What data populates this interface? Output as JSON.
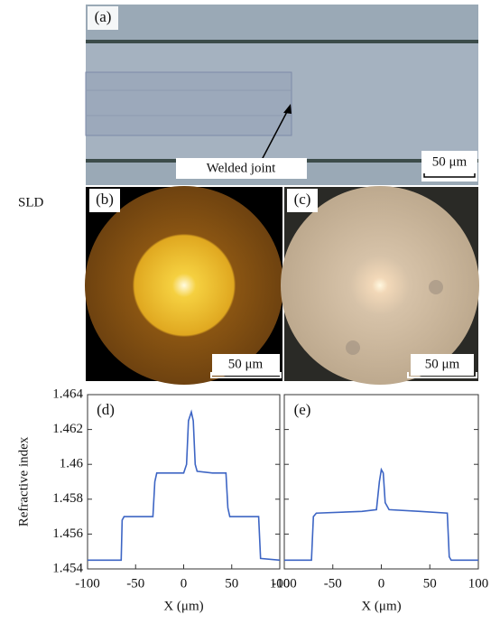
{
  "images": {
    "a": {
      "label": "(a)",
      "annotation": "Welded joint",
      "scale": "50 μm"
    },
    "b": {
      "label": "(b)",
      "scale": "50 μm"
    },
    "c": {
      "label": "(c)",
      "scale": "50 μm"
    },
    "side_label": "SLD"
  },
  "chart_data": [
    {
      "type": "line",
      "label": "(d)",
      "ylabel": "Refractive index",
      "xlabel": "X (μm)",
      "xlim": [
        -100,
        100
      ],
      "xticks": [
        -100,
        -50,
        0,
        50,
        100
      ],
      "ylim": [
        1.454,
        1.464
      ],
      "yticks": [
        1.454,
        1.456,
        1.458,
        1.46,
        1.462,
        1.464
      ],
      "show_ytick_labels": true,
      "series": [
        {
          "name": "(d)",
          "color": "#3d65c4",
          "x": [
            -100,
            -65,
            -64,
            -62,
            -50,
            -32,
            -30,
            -28,
            -10,
            0,
            3,
            5,
            8,
            10,
            12,
            14,
            30,
            44,
            46,
            48,
            70,
            78,
            80,
            100
          ],
          "values": [
            1.4545,
            1.4545,
            1.4568,
            1.457,
            1.457,
            1.457,
            1.459,
            1.4595,
            1.4595,
            1.4595,
            1.46,
            1.4625,
            1.463,
            1.4625,
            1.46,
            1.4596,
            1.4595,
            1.4595,
            1.4575,
            1.457,
            1.457,
            1.457,
            1.4546,
            1.4545
          ]
        }
      ]
    },
    {
      "type": "line",
      "label": "(e)",
      "xlabel": "X (μm)",
      "xlim": [
        -100,
        100
      ],
      "xticks": [
        -100,
        -50,
        0,
        50,
        100
      ],
      "ylim": [
        1.454,
        1.464
      ],
      "yticks": [
        1.454,
        1.456,
        1.458,
        1.46,
        1.462,
        1.464
      ],
      "show_ytick_labels": false,
      "series": [
        {
          "name": "(e)",
          "color": "#3d65c4",
          "x": [
            -100,
            -72,
            -70,
            -67,
            -20,
            -5,
            -2,
            0,
            2,
            4,
            8,
            40,
            68,
            70,
            72,
            100
          ],
          "values": [
            1.4545,
            1.4545,
            1.457,
            1.4572,
            1.4573,
            1.4574,
            1.459,
            1.4597,
            1.4595,
            1.4578,
            1.4574,
            1.4573,
            1.4572,
            1.4547,
            1.4545,
            1.4545
          ]
        }
      ]
    }
  ]
}
